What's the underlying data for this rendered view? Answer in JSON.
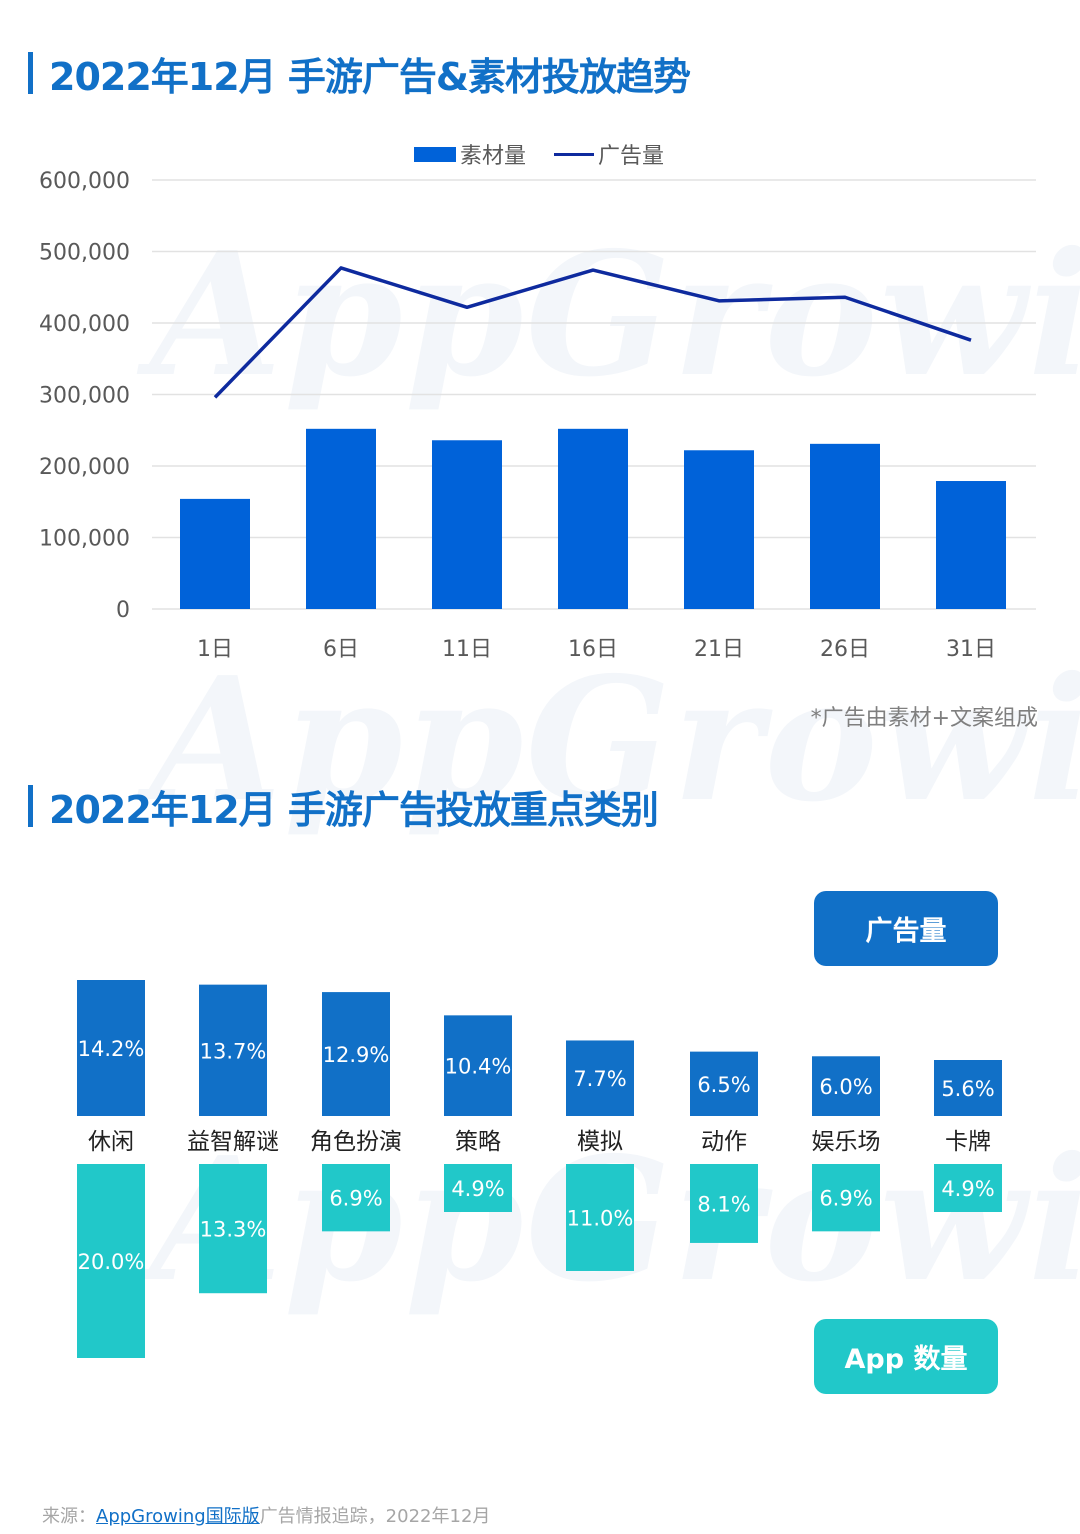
{
  "section1": {
    "title": "2022年12月 手游广告&素材投放趋势",
    "legend": {
      "bar_label": "素材量",
      "line_label": "广告量"
    },
    "note": "*广告由素材+文案组成"
  },
  "section2": {
    "title": "2022年12月 手游广告投放重点类别",
    "pill_top": "广告量",
    "pill_bottom": "App 数量"
  },
  "footer": {
    "prefix": "来源：",
    "link": "AppGrowing国际版",
    "suffix": "广告情报追踪，2022年12月"
  },
  "watermark": "AppGrowing",
  "colors": {
    "title": "#1170c7",
    "bar": "#0062d9",
    "line": "#0e2a9e",
    "ads_bar": "#1170c7",
    "apps_bar": "#21c8c9"
  },
  "chart_data": [
    {
      "type": "bar+line",
      "title": "2022年12月 手游广告&素材投放趋势",
      "categories": [
        "1日",
        "6日",
        "11日",
        "16日",
        "21日",
        "26日",
        "31日"
      ],
      "series": [
        {
          "name": "素材量",
          "type": "bar",
          "values": [
            154000,
            252000,
            236000,
            252000,
            222000,
            231000,
            179000
          ]
        },
        {
          "name": "广告量",
          "type": "line",
          "values": [
            296000,
            477000,
            422000,
            474000,
            431000,
            436000,
            376000
          ]
        }
      ],
      "yticks": [
        "0",
        "100,000",
        "200,000",
        "300,000",
        "400,000",
        "500,000",
        "600,000"
      ],
      "ylim": [
        0,
        600000
      ],
      "grid": true,
      "legend_position": "top",
      "xlabel": "",
      "ylabel": "",
      "annotation": "*广告由素材+文案组成"
    },
    {
      "type": "bar",
      "title": "2022年12月 手游广告投放重点类别",
      "categories": [
        "休闲",
        "益智解谜",
        "角色扮演",
        "策略",
        "模拟",
        "动作",
        "娱乐场",
        "卡牌"
      ],
      "series": [
        {
          "name": "广告量",
          "direction": "up",
          "values": [
            14.2,
            13.7,
            12.9,
            10.4,
            7.7,
            6.5,
            6.0,
            5.6
          ],
          "labels": [
            "14.2%",
            "13.7%",
            "12.9%",
            "10.4%",
            "7.7%",
            "6.5%",
            "6.0%",
            "5.6%"
          ]
        },
        {
          "name": "App 数量",
          "direction": "down",
          "values": [
            20.0,
            13.3,
            6.9,
            4.9,
            11.0,
            8.1,
            6.9,
            4.9
          ],
          "labels": [
            "20.0%",
            "13.3%",
            "6.9%",
            "4.9%",
            "11.0%",
            "8.1%",
            "6.9%",
            "4.9%"
          ]
        }
      ],
      "unit": "%"
    }
  ]
}
